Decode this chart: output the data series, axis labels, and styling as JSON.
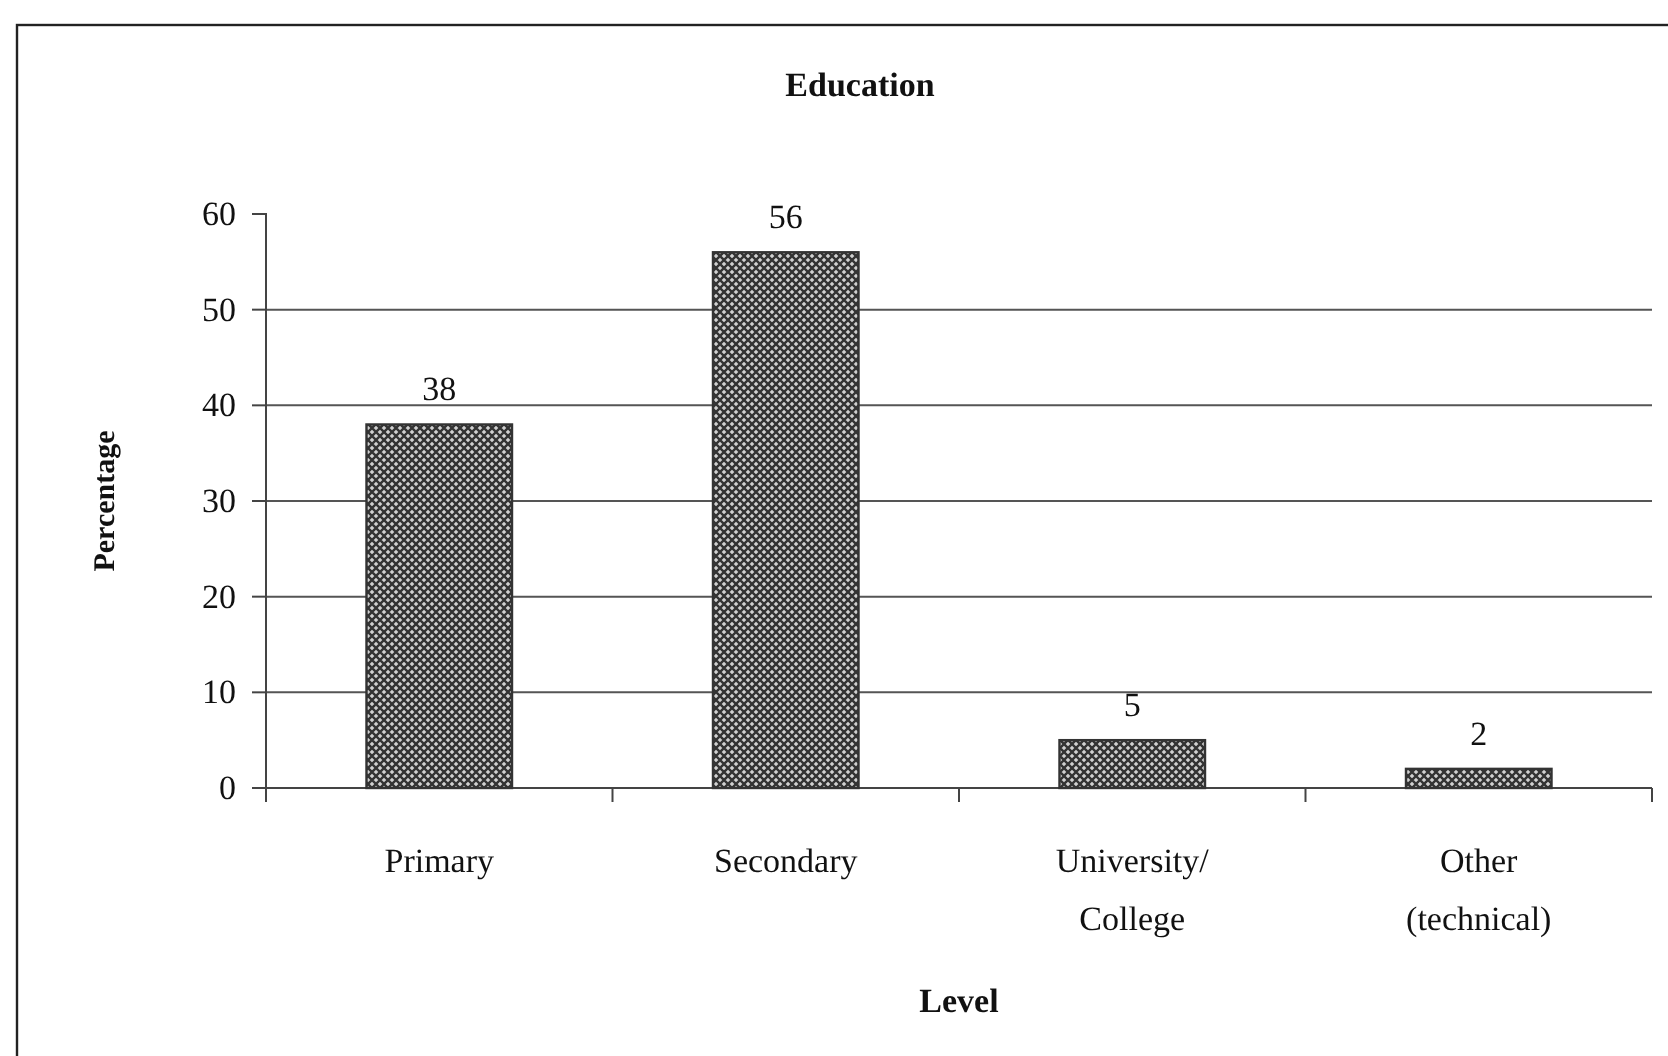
{
  "chart_data": {
    "type": "bar",
    "title": "Education",
    "xlabel": "Level",
    "ylabel": "Percentage",
    "categories": [
      "Primary",
      "Secondary",
      "University/ College",
      "Other (technical)"
    ],
    "values": [
      38,
      56,
      5,
      2
    ],
    "color": "#333333",
    "ylim": [
      0,
      60
    ],
    "yticks": [
      0,
      10,
      20,
      30,
      40,
      50,
      60
    ],
    "grid": "y",
    "data_labels": true
  }
}
